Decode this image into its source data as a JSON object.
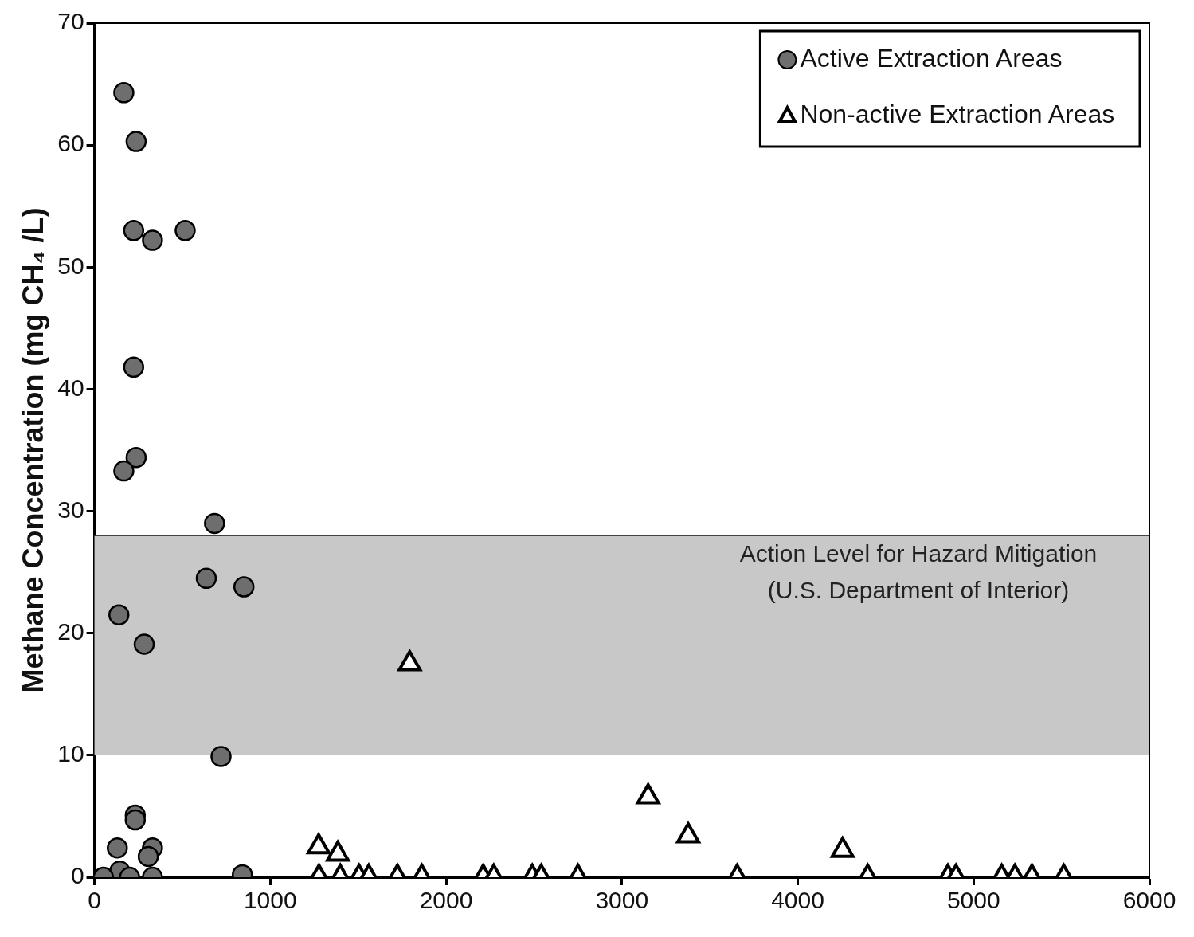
{
  "chart_data": {
    "type": "scatter",
    "ylabel": "Methane Concentration (mg CH₄ /L)",
    "xlim": [
      0,
      6000
    ],
    "xticks": [
      0,
      1000,
      2000,
      3000,
      4000,
      5000,
      6000
    ],
    "ylim": [
      0,
      70
    ],
    "yticks": [
      0,
      10,
      20,
      30,
      40,
      50,
      60,
      70
    ],
    "grid": false,
    "legend": "top right",
    "ref_lines": [
      {
        "axis": "y",
        "value": 28,
        "color": "#000000"
      }
    ],
    "bands": [
      {
        "axis": "y",
        "from": 10,
        "to": 28,
        "label": "Action Level for Hazard Mitigation\n(U.S. Department of Interior)",
        "color": "#c8c8c8"
      }
    ],
    "series": [
      {
        "name": "Active Extraction Areas",
        "color": "#6e6e6e",
        "marker": "circle",
        "x": [
          167,
          237,
          223,
          330,
          516,
          223,
          237,
          167,
          683,
          636,
          850,
          139,
          283,
          720,
          232,
          232,
          130,
          330,
          306,
          144,
          51,
          200,
          330,
          841
        ],
        "values": [
          64.3,
          60.3,
          53.0,
          52.2,
          53.0,
          41.8,
          34.4,
          33.3,
          29.0,
          24.5,
          23.8,
          21.5,
          19.1,
          9.9,
          5.1,
          4.7,
          2.4,
          2.4,
          1.7,
          0.5,
          0,
          0,
          0,
          0.2
        ]
      },
      {
        "name": "Non-active Extraction Areas",
        "color": "#ffffff",
        "marker": "triangle",
        "x": [
          1793,
          3149,
          3377,
          4255,
          1275,
          1384,
          1277,
          1398,
          1505,
          1560,
          1723,
          1862,
          2211,
          2271,
          2490,
          2541,
          2750,
          3655,
          4398,
          4854,
          4900,
          5160,
          5235,
          5332,
          5513
        ],
        "values": [
          17.5,
          6.6,
          3.4,
          2.2,
          2.5,
          1.9,
          0,
          0,
          0,
          0,
          0,
          0,
          0,
          0,
          0,
          0,
          0,
          0,
          0,
          0,
          0,
          0,
          0,
          0,
          0
        ]
      }
    ]
  }
}
